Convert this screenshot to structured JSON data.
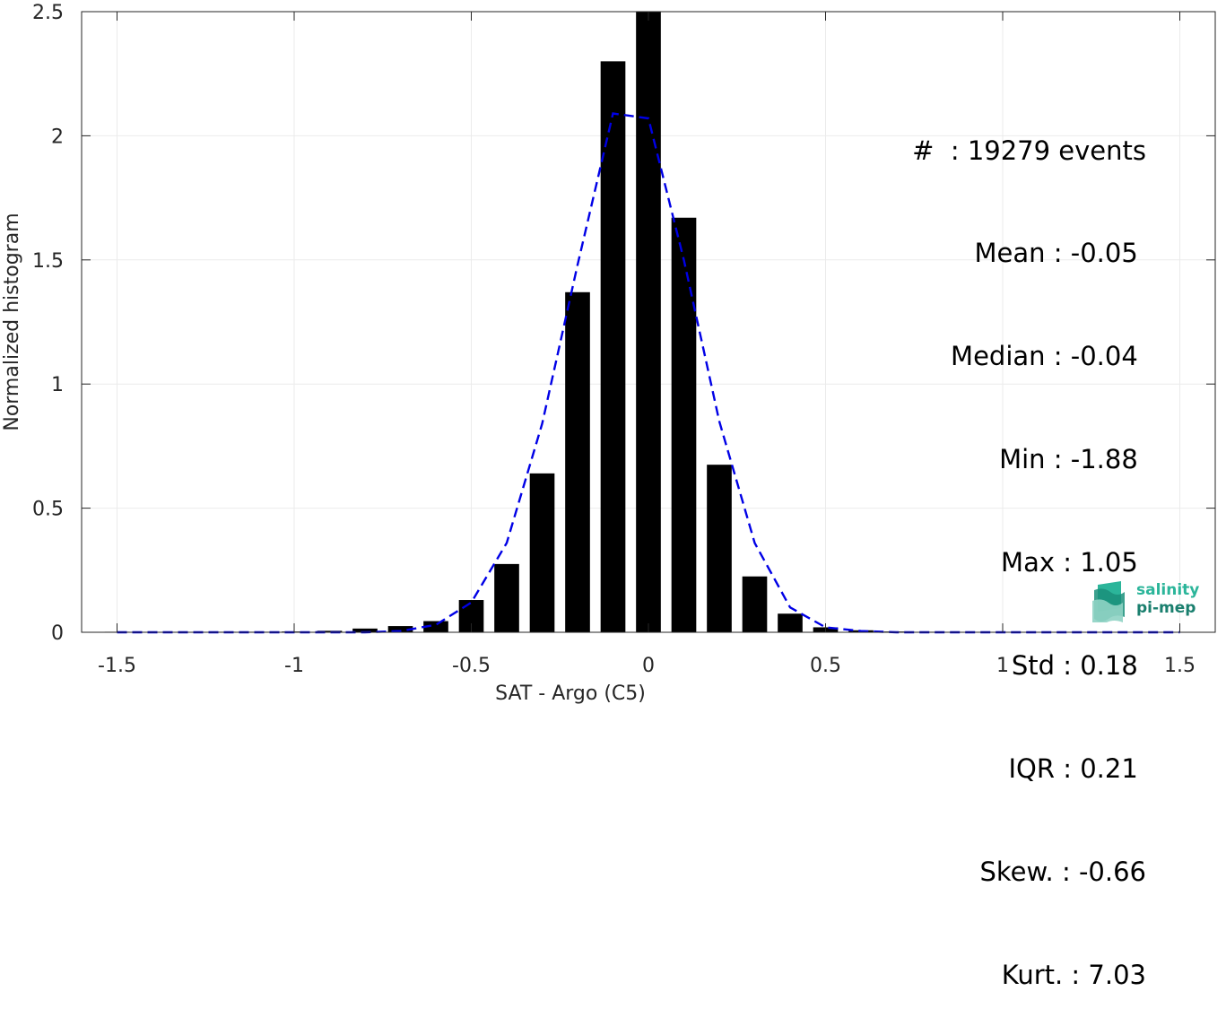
{
  "chart_data": {
    "type": "bar",
    "xlabel": "SAT - Argo (C5)",
    "ylabel": "Normalized histogram",
    "xlim": [
      -1.6,
      1.6
    ],
    "ylim": [
      0,
      2.5
    ],
    "xticks": [
      -1.5,
      -1,
      -0.5,
      0,
      0.5,
      1,
      1.5
    ],
    "xtick_labels": [
      "-1.5",
      "-1",
      "-0.5",
      "0",
      "0.5",
      "1",
      "1.5"
    ],
    "yticks": [
      0,
      0.5,
      1,
      1.5,
      2,
      2.5
    ],
    "ytick_labels": [
      "0",
      "0.5",
      "1",
      "1.5",
      "2",
      "2.5"
    ],
    "grid": true,
    "bar_width": 0.07,
    "bars": {
      "x": [
        -1.5,
        -1.4,
        -1.3,
        -1.2,
        -1.1,
        -1.0,
        -0.9,
        -0.8,
        -0.7,
        -0.6,
        -0.5,
        -0.4,
        -0.3,
        -0.2,
        -0.1,
        0.0,
        0.1,
        0.2,
        0.3,
        0.4,
        0.5,
        0.6,
        0.7,
        0.8,
        0.9,
        1.0
      ],
      "values": [
        0.002,
        0.001,
        0.001,
        0.002,
        0.002,
        0.003,
        0.006,
        0.015,
        0.025,
        0.045,
        0.13,
        0.275,
        0.64,
        1.37,
        2.3,
        2.5,
        1.67,
        0.675,
        0.225,
        0.075,
        0.02,
        0.008,
        0.003,
        0.002,
        0.001,
        0.001
      ]
    },
    "fit_curve": {
      "style": "dashed",
      "x": [
        -1.5,
        -1.4,
        -1.3,
        -1.2,
        -1.1,
        -1.0,
        -0.9,
        -0.8,
        -0.7,
        -0.6,
        -0.5,
        -0.4,
        -0.3,
        -0.2,
        -0.1,
        0.0,
        0.1,
        0.2,
        0.3,
        0.4,
        0.5,
        0.6,
        0.7,
        0.8,
        0.9,
        1.0,
        1.1,
        1.2,
        1.3,
        1.4,
        1.5
      ],
      "values": [
        0,
        0,
        0,
        0,
        0,
        0,
        0,
        0,
        0.005,
        0.03,
        0.12,
        0.36,
        0.84,
        1.48,
        2.09,
        2.07,
        1.5,
        0.85,
        0.36,
        0.1,
        0.02,
        0.005,
        0,
        0,
        0,
        0,
        0,
        0,
        0,
        0,
        0
      ]
    }
  },
  "colors": {
    "bars": "#000000",
    "fit_curve": "#0000e6",
    "grid": "#ebebeb",
    "axes": "#262626"
  },
  "stats": {
    "events": "#  : 19279 events",
    "mean": "Mean : -0.05 ",
    "median": "Median : -0.04 ",
    "min": "Min : -1.88 ",
    "max": "Max : 1.05 ",
    "std": "Std : 0.18 ",
    "iqr": "IQR : 0.21 ",
    "skew": "Skew. : -0.66",
    "kurt": "Kurt. : 7.03"
  },
  "logo": {
    "line1": "salinity",
    "line2": "pi-mep",
    "colors": [
      "#2bb59a",
      "#1a8f7a",
      "#8fd3c4"
    ]
  }
}
